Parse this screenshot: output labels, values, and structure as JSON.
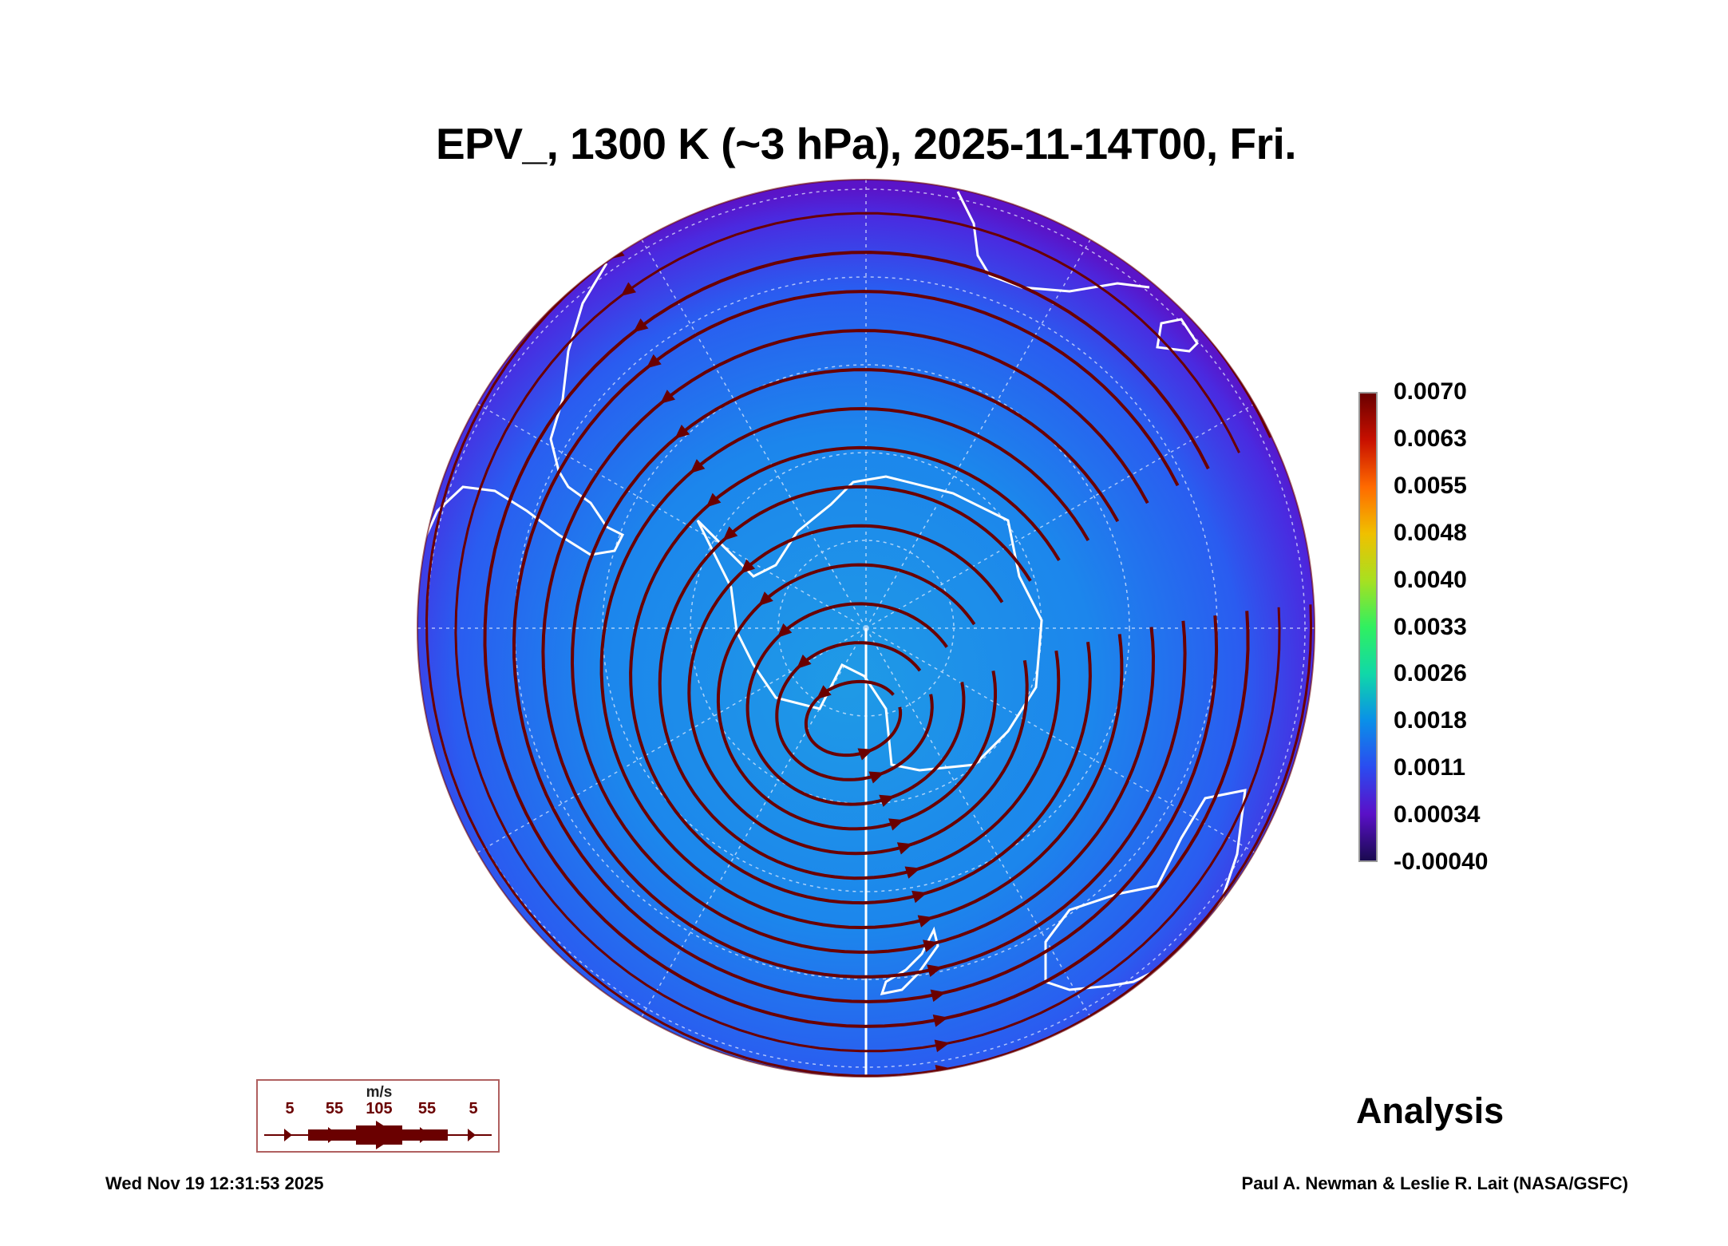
{
  "title": "EPV_, 1300 K (~3 hPa), 2025-11-14T00, Fri.",
  "colorbar": {
    "labels": [
      "0.0070",
      "0.0063",
      "0.0055",
      "0.0048",
      "0.0040",
      "0.0033",
      "0.0026",
      "0.0018",
      "0.0011",
      "0.00034",
      "-0.00040"
    ],
    "min": -0.0004,
    "max": 0.007
  },
  "legend": {
    "unit": "m/s",
    "speeds": [
      "5",
      "55",
      "105",
      "55",
      "5"
    ],
    "color": "#6a0000"
  },
  "analysis_label": "Analysis",
  "timestamp": "Wed Nov 19 12:31:53 2025",
  "credit": "Paul A. Newman & Leslie R. Lait (NASA/GSFC)",
  "colors": {
    "streamline": "#6a0000",
    "coastline": "#ffffff",
    "field_base": "#1e6ef0"
  }
}
